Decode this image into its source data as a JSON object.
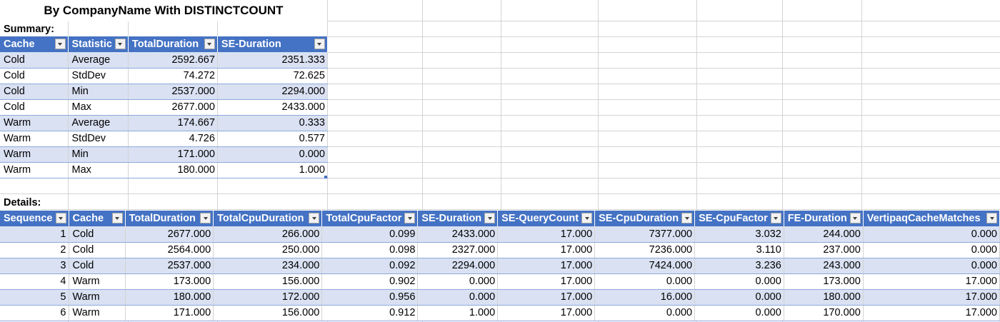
{
  "title": "By CompanyName With DISTINCTCOUNT",
  "summary": {
    "label": "Summary:",
    "columns": [
      "Cache",
      "Statistic",
      "TotalDuration",
      "SE-Duration"
    ],
    "rows": [
      [
        "Cold",
        "Average",
        "2592.667",
        "2351.333"
      ],
      [
        "Cold",
        "StdDev",
        "74.272",
        "72.625"
      ],
      [
        "Cold",
        "Min",
        "2537.000",
        "2294.000"
      ],
      [
        "Cold",
        "Max",
        "2677.000",
        "2433.000"
      ],
      [
        "Warm",
        "Average",
        "174.667",
        "0.333"
      ],
      [
        "Warm",
        "StdDev",
        "4.726",
        "0.577"
      ],
      [
        "Warm",
        "Min",
        "171.000",
        "0.000"
      ],
      [
        "Warm",
        "Max",
        "180.000",
        "1.000"
      ]
    ]
  },
  "details": {
    "label": "Details:",
    "columns": [
      "Sequence",
      "Cache",
      "TotalDuration",
      "TotalCpuDuration",
      "TotalCpuFactor",
      "SE-Duration",
      "SE-QueryCount",
      "SE-CpuDuration",
      "SE-CpuFactor",
      "FE-Duration",
      "VertipaqCacheMatches"
    ],
    "rows": [
      [
        "1",
        "Cold",
        "2677.000",
        "266.000",
        "0.099",
        "2433.000",
        "17.000",
        "7377.000",
        "3.032",
        "244.000",
        "0.000"
      ],
      [
        "2",
        "Cold",
        "2564.000",
        "250.000",
        "0.098",
        "2327.000",
        "17.000",
        "7236.000",
        "3.110",
        "237.000",
        "0.000"
      ],
      [
        "3",
        "Cold",
        "2537.000",
        "234.000",
        "0.092",
        "2294.000",
        "17.000",
        "7424.000",
        "3.236",
        "243.000",
        "0.000"
      ],
      [
        "4",
        "Warm",
        "173.000",
        "156.000",
        "0.902",
        "0.000",
        "17.000",
        "0.000",
        "0.000",
        "173.000",
        "17.000"
      ],
      [
        "5",
        "Warm",
        "180.000",
        "172.000",
        "0.956",
        "0.000",
        "17.000",
        "16.000",
        "0.000",
        "180.000",
        "17.000"
      ],
      [
        "6",
        "Warm",
        "171.000",
        "156.000",
        "0.912",
        "1.000",
        "17.000",
        "0.000",
        "0.000",
        "170.000",
        "17.000"
      ]
    ]
  },
  "colors": {
    "header": "#4472c4",
    "band": "#d9e1f2",
    "gridline": "#d4d4d4"
  }
}
